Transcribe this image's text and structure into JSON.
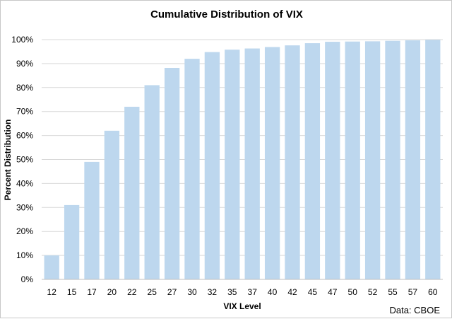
{
  "chart_data": {
    "type": "bar",
    "title": "Cumulative Distribution of VIX",
    "xlabel": "VIX Level",
    "ylabel": "Percent Distribution",
    "categories": [
      "12",
      "15",
      "17",
      "20",
      "22",
      "25",
      "27",
      "30",
      "32",
      "35",
      "37",
      "40",
      "42",
      "45",
      "47",
      "50",
      "52",
      "55",
      "57",
      "60"
    ],
    "values": [
      10,
      31,
      49,
      62,
      72,
      81,
      88.2,
      92,
      94.8,
      95.8,
      96.3,
      96.9,
      97.6,
      98.5,
      99.1,
      99.2,
      99.3,
      99.5,
      99.7,
      99.9
    ],
    "ylim": [
      0,
      100
    ],
    "yticks": [
      0,
      10,
      20,
      30,
      40,
      50,
      60,
      70,
      80,
      90,
      100
    ],
    "ytick_labels": [
      "0%",
      "10%",
      "20%",
      "30%",
      "40%",
      "50%",
      "60%",
      "70%",
      "80%",
      "90%",
      "100%"
    ],
    "grid": "horizontal",
    "bar_color": "#bdd7ee",
    "grid_color": "#d9d9d9",
    "source_note": "Data: CBOE"
  }
}
